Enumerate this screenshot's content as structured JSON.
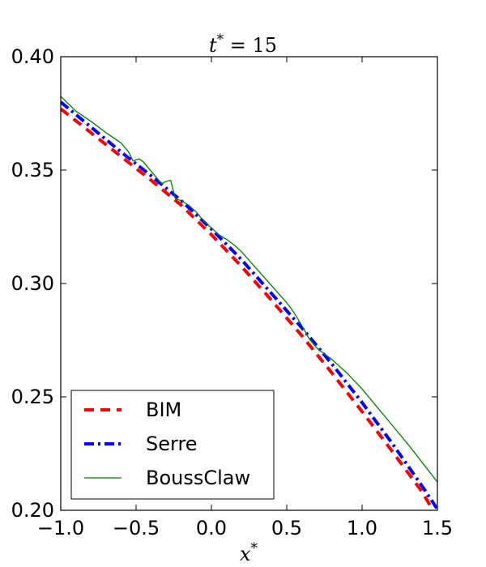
{
  "chart_data": {
    "type": "line",
    "title": "t* = 15",
    "xlabel": "x*",
    "ylabel": "",
    "xlim": [
      -1.0,
      1.5
    ],
    "ylim": [
      0.2,
      0.4
    ],
    "x_ticks": [
      -1.0,
      -0.5,
      0.0,
      0.5,
      1.0,
      1.5
    ],
    "x_tick_labels": [
      "−1.0",
      "−0.5",
      "0.0",
      "0.5",
      "1.0",
      "1.5"
    ],
    "y_ticks": [
      0.2,
      0.25,
      0.3,
      0.35,
      0.4
    ],
    "y_tick_labels": [
      "0.20",
      "0.25",
      "0.30",
      "0.35",
      "0.40"
    ],
    "grid": false,
    "legend_position": "lower-left",
    "series": [
      {
        "name": "BIM",
        "color": "#ff0000",
        "style": "dashed",
        "x": [
          -1.0,
          -0.8,
          -0.6,
          -0.4,
          -0.2,
          0.0,
          0.2,
          0.4,
          0.6,
          0.8,
          1.0,
          1.2,
          1.4,
          1.47
        ],
        "y": [
          0.377,
          0.3665,
          0.356,
          0.3455,
          0.3345,
          0.3215,
          0.3075,
          0.2925,
          0.277,
          0.2605,
          0.2435,
          0.226,
          0.208,
          0.2
        ]
      },
      {
        "name": "Serre",
        "color": "#0000ff",
        "style": "dashdot",
        "x": [
          -1.0,
          -0.8,
          -0.6,
          -0.4,
          -0.2,
          0.0,
          0.2,
          0.4,
          0.6,
          0.8,
          1.0,
          1.2,
          1.4,
          1.5
        ],
        "y": [
          0.38,
          0.369,
          0.358,
          0.3475,
          0.3365,
          0.324,
          0.3105,
          0.2955,
          0.2805,
          0.2645,
          0.2475,
          0.2295,
          0.2105,
          0.2005
        ]
      },
      {
        "name": "BoussClaw",
        "color": "#008000",
        "style": "solid",
        "x": [
          -1.0,
          -0.9,
          -0.8,
          -0.7,
          -0.6,
          -0.55,
          -0.52,
          -0.5,
          -0.48,
          -0.45,
          -0.4,
          -0.33,
          -0.3,
          -0.27,
          -0.24,
          -0.2,
          -0.15,
          -0.1,
          -0.05,
          0.0,
          0.05,
          0.1,
          0.15,
          0.2,
          0.3,
          0.4,
          0.5,
          0.55,
          0.6,
          0.65,
          0.7,
          0.8,
          0.9,
          1.0,
          1.1,
          1.2,
          1.3,
          1.4,
          1.5
        ],
        "y": [
          0.3825,
          0.376,
          0.3715,
          0.3665,
          0.362,
          0.358,
          0.354,
          0.3545,
          0.355,
          0.3535,
          0.3495,
          0.344,
          0.345,
          0.3455,
          0.3375,
          0.3365,
          0.3345,
          0.3315,
          0.3275,
          0.3245,
          0.3215,
          0.3195,
          0.317,
          0.314,
          0.3065,
          0.299,
          0.2915,
          0.287,
          0.2815,
          0.2755,
          0.2715,
          0.2665,
          0.2605,
          0.2535,
          0.2455,
          0.2375,
          0.2295,
          0.221,
          0.2125
        ]
      }
    ]
  }
}
